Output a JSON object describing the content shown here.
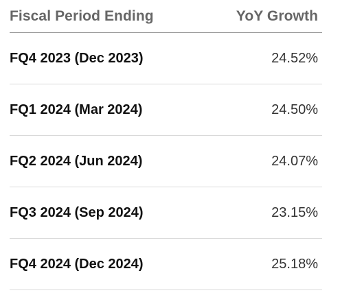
{
  "table": {
    "headers": {
      "period": "Fiscal Period Ending",
      "growth": "YoY Growth"
    },
    "rows": [
      {
        "period": "FQ4 2023 (Dec 2023)",
        "growth": "24.52%"
      },
      {
        "period": "FQ1 2024 (Mar 2024)",
        "growth": "24.50%"
      },
      {
        "period": "FQ2 2024 (Jun 2024)",
        "growth": "24.07%"
      },
      {
        "period": "FQ3 2024 (Sep 2024)",
        "growth": "23.15%"
      },
      {
        "period": "FQ4 2024 (Dec 2024)",
        "growth": "25.18%"
      }
    ]
  },
  "colors": {
    "header_text": "#666666",
    "period_text": "#111111",
    "growth_text": "#333333",
    "header_divider": "#9a9a9a",
    "row_divider": "#d9d9d9",
    "background": "#ffffff"
  }
}
